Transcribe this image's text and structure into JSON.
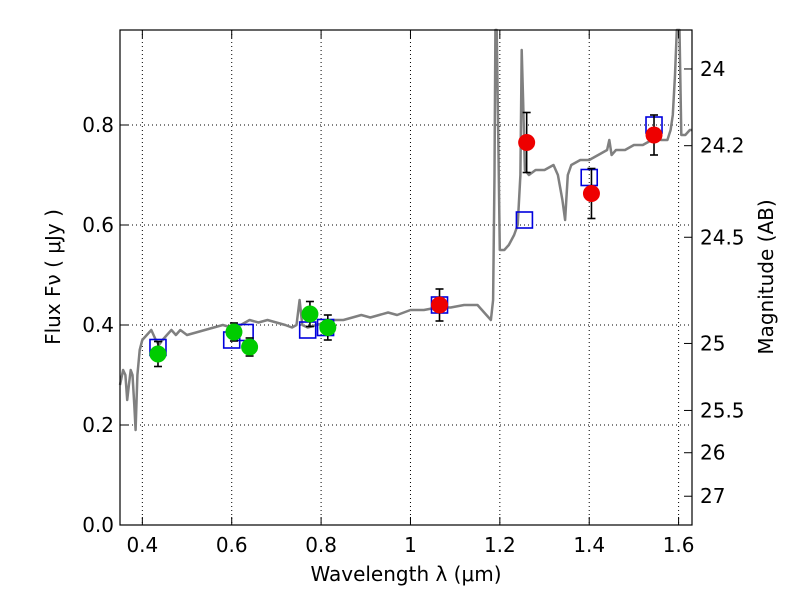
{
  "chart_data": {
    "type": "scatter",
    "xlabel": "Wavelength  λ (μm)",
    "ylabel": "Flux  Fν  ( μJy )",
    "y2label": "Magnitude (AB)",
    "xlim": [
      0.35,
      1.63
    ],
    "ylim": [
      0.0,
      0.99
    ],
    "grid": true,
    "x_ticks": [
      0.4,
      0.6,
      0.8,
      1.0,
      1.2,
      1.4,
      1.6
    ],
    "x_tick_labels": [
      "0.4",
      "0.6",
      "0.8",
      "1",
      "1.2",
      "1.4",
      "1.6"
    ],
    "y_ticks": [
      0.0,
      0.2,
      0.4,
      0.6,
      0.8
    ],
    "y_tick_labels": [
      "0.0",
      "0.2",
      "0.4",
      "0.6",
      "0.8"
    ],
    "right_ticks": [
      {
        "label": "24",
        "mag": 24.0
      },
      {
        "label": "24.2",
        "mag": 24.2
      },
      {
        "label": "24.5",
        "mag": 24.5
      },
      {
        "label": "25",
        "mag": 25.0
      },
      {
        "label": "25.5",
        "mag": 25.5
      },
      {
        "label": "26",
        "mag": 26.0
      },
      {
        "label": "27",
        "mag": 27.0
      }
    ],
    "colors": {
      "model": "#808080",
      "green": "#00cc00",
      "red": "#ee0000",
      "box": "#0000dd",
      "error": "#000000",
      "grid": "#000000"
    },
    "model_spectrum": [
      [
        0.35,
        0.28
      ],
      [
        0.357,
        0.31
      ],
      [
        0.362,
        0.3
      ],
      [
        0.366,
        0.25
      ],
      [
        0.37,
        0.28
      ],
      [
        0.374,
        0.31
      ],
      [
        0.378,
        0.3
      ],
      [
        0.382,
        0.24
      ],
      [
        0.385,
        0.19
      ],
      [
        0.389,
        0.3
      ],
      [
        0.394,
        0.35
      ],
      [
        0.4,
        0.37
      ],
      [
        0.41,
        0.38
      ],
      [
        0.42,
        0.39
      ],
      [
        0.43,
        0.37
      ],
      [
        0.437,
        0.36
      ],
      [
        0.445,
        0.37
      ],
      [
        0.455,
        0.38
      ],
      [
        0.465,
        0.39
      ],
      [
        0.475,
        0.38
      ],
      [
        0.485,
        0.39
      ],
      [
        0.5,
        0.38
      ],
      [
        0.52,
        0.385
      ],
      [
        0.54,
        0.39
      ],
      [
        0.56,
        0.395
      ],
      [
        0.58,
        0.4
      ],
      [
        0.6,
        0.395
      ],
      [
        0.62,
        0.4
      ],
      [
        0.64,
        0.41
      ],
      [
        0.66,
        0.405
      ],
      [
        0.68,
        0.41
      ],
      [
        0.7,
        0.405
      ],
      [
        0.72,
        0.4
      ],
      [
        0.735,
        0.395
      ],
      [
        0.745,
        0.4
      ],
      [
        0.752,
        0.45
      ],
      [
        0.758,
        0.4
      ],
      [
        0.77,
        0.395
      ],
      [
        0.79,
        0.4
      ],
      [
        0.81,
        0.405
      ],
      [
        0.83,
        0.41
      ],
      [
        0.85,
        0.41
      ],
      [
        0.87,
        0.415
      ],
      [
        0.89,
        0.42
      ],
      [
        0.91,
        0.415
      ],
      [
        0.93,
        0.42
      ],
      [
        0.95,
        0.425
      ],
      [
        0.97,
        0.42
      ],
      [
        1.0,
        0.43
      ],
      [
        1.03,
        0.43
      ],
      [
        1.06,
        0.435
      ],
      [
        1.09,
        0.435
      ],
      [
        1.12,
        0.44
      ],
      [
        1.15,
        0.44
      ],
      [
        1.17,
        0.42
      ],
      [
        1.18,
        0.41
      ],
      [
        1.185,
        0.45
      ],
      [
        1.188,
        0.7
      ],
      [
        1.19,
        0.99
      ],
      [
        1.193,
        0.99
      ],
      [
        1.196,
        0.8
      ],
      [
        1.2,
        0.55
      ],
      [
        1.21,
        0.55
      ],
      [
        1.22,
        0.56
      ],
      [
        1.232,
        0.58
      ],
      [
        1.24,
        0.6
      ],
      [
        1.246,
        0.7
      ],
      [
        1.249,
        0.95
      ],
      [
        1.252,
        0.85
      ],
      [
        1.256,
        0.71
      ],
      [
        1.265,
        0.7
      ],
      [
        1.28,
        0.71
      ],
      [
        1.3,
        0.71
      ],
      [
        1.32,
        0.72
      ],
      [
        1.33,
        0.7
      ],
      [
        1.34,
        0.65
      ],
      [
        1.346,
        0.61
      ],
      [
        1.352,
        0.7
      ],
      [
        1.36,
        0.72
      ],
      [
        1.38,
        0.73
      ],
      [
        1.4,
        0.73
      ],
      [
        1.42,
        0.74
      ],
      [
        1.44,
        0.75
      ],
      [
        1.445,
        0.77
      ],
      [
        1.45,
        0.74
      ],
      [
        1.46,
        0.75
      ],
      [
        1.48,
        0.75
      ],
      [
        1.5,
        0.76
      ],
      [
        1.52,
        0.76
      ],
      [
        1.54,
        0.77
      ],
      [
        1.55,
        0.79
      ],
      [
        1.56,
        0.77
      ],
      [
        1.575,
        0.77
      ],
      [
        1.582,
        0.79
      ],
      [
        1.587,
        0.82
      ],
      [
        1.592,
        0.9
      ],
      [
        1.596,
        0.99
      ],
      [
        1.602,
        0.99
      ],
      [
        1.606,
        0.78
      ],
      [
        1.615,
        0.78
      ],
      [
        1.625,
        0.79
      ],
      [
        1.63,
        0.79
      ]
    ],
    "model_points": [
      {
        "x": 0.435,
        "y": 0.355
      },
      {
        "x": 0.6,
        "y": 0.37
      },
      {
        "x": 0.63,
        "y": 0.385
      },
      {
        "x": 0.77,
        "y": 0.39
      },
      {
        "x": 0.81,
        "y": 0.395
      },
      {
        "x": 1.065,
        "y": 0.44
      },
      {
        "x": 1.255,
        "y": 0.61
      },
      {
        "x": 1.4,
        "y": 0.695
      },
      {
        "x": 1.545,
        "y": 0.8
      }
    ],
    "observed_points": [
      {
        "x": 0.435,
        "y": 0.342,
        "err": 0.025,
        "color": "green"
      },
      {
        "x": 0.605,
        "y": 0.386,
        "err": 0.018,
        "color": "green"
      },
      {
        "x": 0.64,
        "y": 0.356,
        "err": 0.018,
        "color": "green"
      },
      {
        "x": 0.775,
        "y": 0.422,
        "err": 0.025,
        "color": "green"
      },
      {
        "x": 0.815,
        "y": 0.395,
        "err": 0.025,
        "color": "green"
      },
      {
        "x": 1.065,
        "y": 0.44,
        "err": 0.032,
        "color": "red"
      },
      {
        "x": 1.26,
        "y": 0.765,
        "err": 0.06,
        "color": "red"
      },
      {
        "x": 1.405,
        "y": 0.663,
        "err": 0.05,
        "color": "red"
      },
      {
        "x": 1.545,
        "y": 0.78,
        "err": 0.04,
        "color": "red"
      }
    ]
  }
}
